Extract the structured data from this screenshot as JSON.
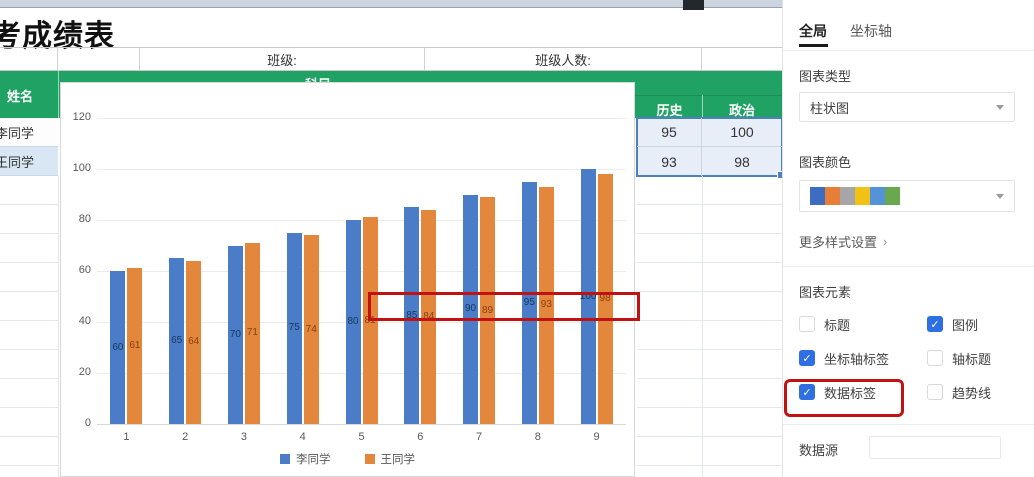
{
  "title": "考成绩表",
  "spreadsheet": {
    "header_row": {
      "class_label": "班级:",
      "class_size_label": "班级人数:"
    },
    "green_header": {
      "merged_label": "科目",
      "name_col": "姓名",
      "columns": [
        "历史",
        "政治"
      ]
    },
    "rows": [
      {
        "name": "李同学",
        "values": [
          95,
          100
        ]
      },
      {
        "name": "王同学",
        "values": [
          93,
          98
        ]
      }
    ]
  },
  "chart_data": {
    "type": "bar",
    "title": "",
    "xlabel": "",
    "ylabel": "",
    "categories": [
      "1",
      "2",
      "3",
      "4",
      "5",
      "6",
      "7",
      "8",
      "9"
    ],
    "series": [
      {
        "name": "李同学",
        "color": "#4a7cc7",
        "label_color": "#17375e",
        "values": [
          60,
          65,
          70,
          75,
          80,
          85,
          90,
          95,
          100
        ]
      },
      {
        "name": "王同学",
        "color": "#e2873b",
        "label_color": "#8c3f0e",
        "values": [
          61,
          64,
          71,
          74,
          81,
          84,
          89,
          93,
          98
        ]
      }
    ],
    "ylim": [
      0,
      120
    ],
    "ytick_step": 20,
    "grid": true,
    "legend_position": "bottom",
    "data_labels": true
  },
  "panel": {
    "tabs": [
      {
        "label": "全局",
        "active": true
      },
      {
        "label": "坐标轴",
        "active": false
      }
    ],
    "chart_type": {
      "label": "图表类型",
      "value": "柱状图"
    },
    "chart_color": {
      "label": "图表颜色",
      "swatches": [
        "#3d6cc0",
        "#e87d35",
        "#a6a6a6",
        "#f2c116",
        "#5593d8",
        "#69a84f"
      ]
    },
    "more_styles_label": "更多样式设置",
    "elements": {
      "label": "图表元素",
      "items": [
        {
          "label": "标题",
          "checked": false,
          "highlighted": false
        },
        {
          "label": "图例",
          "checked": true,
          "highlighted": false
        },
        {
          "label": "坐标轴标签",
          "checked": true,
          "highlighted": false
        },
        {
          "label": "轴标题",
          "checked": false,
          "highlighted": false
        },
        {
          "label": "数据标签",
          "checked": true,
          "highlighted": true
        },
        {
          "label": "趋势线",
          "checked": false,
          "highlighted": false
        }
      ]
    },
    "data_source": {
      "label": "数据源",
      "value": ""
    }
  },
  "colors": {
    "header_green": "#1fa263",
    "selection_blue": "#4e7fc1",
    "checkbox_blue": "#2f6fe4",
    "annotation_red": "#c01212"
  }
}
